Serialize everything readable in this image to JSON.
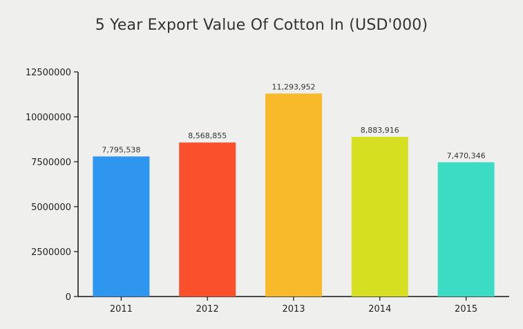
{
  "chart_data": {
    "type": "bar",
    "title": "5 Year Export Value Of Cotton In (USD'000)",
    "categories": [
      "2011",
      "2012",
      "2013",
      "2014",
      "2015"
    ],
    "values": [
      7795538,
      8568855,
      11293952,
      8883916,
      7470346
    ],
    "data_labels": [
      "7,795,538",
      "8,568,855",
      "11,293,952",
      "8,883,916",
      "7,470,346"
    ],
    "colors": [
      "#2f96ef",
      "#fa502c",
      "#f8ba2b",
      "#d6df20",
      "#3cdcc4"
    ],
    "ylim": [
      0,
      12500000
    ],
    "yticks": [
      0,
      2500000,
      5000000,
      7500000,
      10000000,
      12500000
    ],
    "ytick_labels": [
      "0",
      "2500000",
      "5000000",
      "7500000",
      "10000000",
      "12500000"
    ],
    "xlabel": "",
    "ylabel": "",
    "grid": false,
    "legend": "none"
  }
}
